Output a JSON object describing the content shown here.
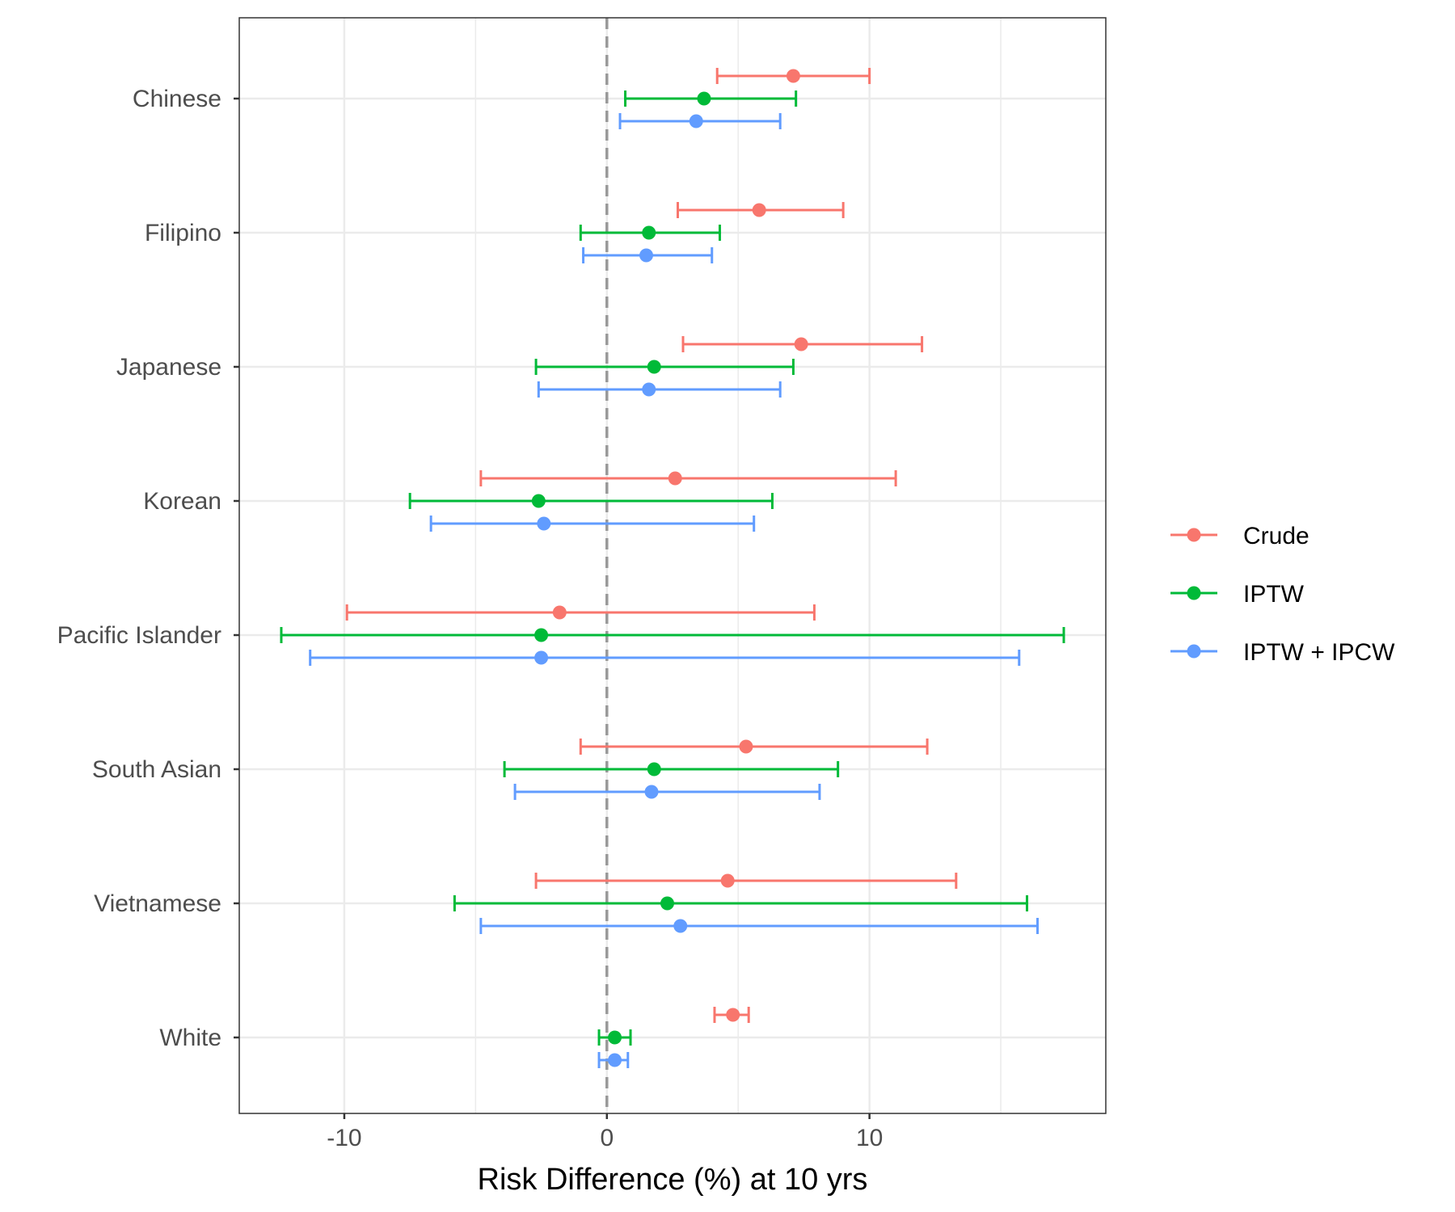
{
  "chart_data": {
    "type": "forest",
    "xlabel": "Risk Difference (%) at 10 yrs",
    "xlim": [
      -14,
      19
    ],
    "x_ticks": [
      -10,
      0,
      10
    ],
    "x_tick_labels": [
      "-10",
      "0",
      "10"
    ],
    "reference_line": 0,
    "grid": true,
    "legend_position": "right",
    "categories": [
      "Chinese",
      "Filipino",
      "Japanese",
      "Korean",
      "Pacific Islander",
      "South Asian",
      "Vietnamese",
      "White"
    ],
    "series": [
      {
        "name": "Crude",
        "color": "#F8766D",
        "estimates": [
          7.1,
          5.8,
          7.4,
          2.6,
          -1.8,
          5.3,
          4.6,
          4.8
        ],
        "lower": [
          4.2,
          2.7,
          2.9,
          -4.8,
          -9.9,
          -1.0,
          -2.7,
          4.1
        ],
        "upper": [
          10.0,
          9.0,
          12.0,
          11.0,
          7.9,
          12.2,
          13.3,
          5.4
        ]
      },
      {
        "name": "IPTW",
        "color": "#00BA38",
        "estimates": [
          3.7,
          1.6,
          1.8,
          -2.6,
          -2.5,
          1.8,
          2.3,
          0.3
        ],
        "lower": [
          0.7,
          -1.0,
          -2.7,
          -7.5,
          -12.4,
          -3.9,
          -5.8,
          -0.3
        ],
        "upper": [
          7.2,
          4.3,
          7.1,
          6.3,
          17.4,
          8.8,
          16.0,
          0.9
        ]
      },
      {
        "name": "IPTW + IPCW",
        "color": "#619CFF",
        "estimates": [
          3.4,
          1.5,
          1.6,
          -2.4,
          -2.5,
          1.7,
          2.8,
          0.3
        ],
        "lower": [
          0.5,
          -0.9,
          -2.6,
          -6.7,
          -11.3,
          -3.5,
          -4.8,
          -0.3
        ],
        "upper": [
          6.6,
          4.0,
          6.6,
          5.6,
          15.7,
          8.1,
          16.4,
          0.8
        ]
      }
    ]
  }
}
